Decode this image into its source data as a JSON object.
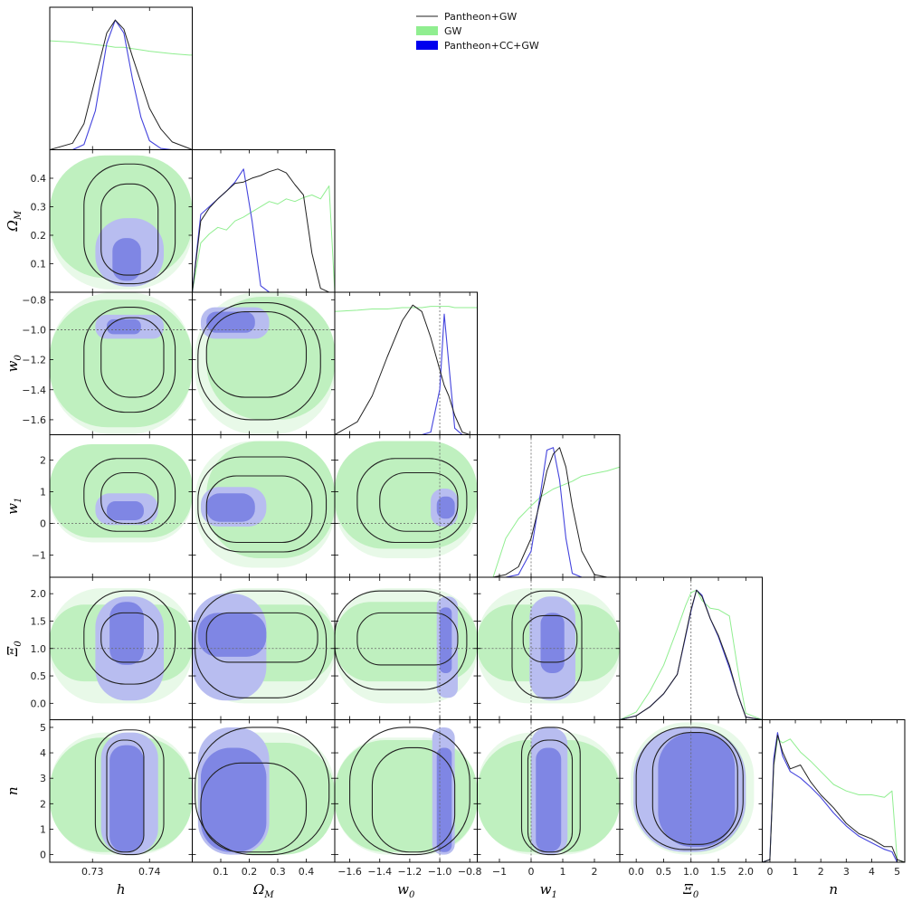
{
  "chart_data": {
    "type": "corner",
    "parameters": [
      {
        "key": "h",
        "label": "h",
        "sub": "",
        "range": [
          0.7225,
          0.7475
        ],
        "ticks": [
          0.73,
          0.74
        ],
        "tick_labels": [
          "0.73",
          "0.74"
        ]
      },
      {
        "key": "om",
        "label": "Ω",
        "sub": "M",
        "range": [
          0,
          0.5
        ],
        "ticks": [
          0.1,
          0.2,
          0.3,
          0.4
        ],
        "tick_labels": [
          "0.1",
          "0.2",
          "0.3",
          "0.4"
        ]
      },
      {
        "key": "w0",
        "label": "w",
        "sub": "0",
        "range": [
          -1.7,
          -0.75
        ],
        "ticks": [
          -1.6,
          -1.4,
          -1.2,
          -1.0,
          -0.8
        ],
        "tick_labels": [
          "−1.6",
          "−1.4",
          "−1.2",
          "−1.0",
          "−0.8"
        ]
      },
      {
        "key": "w1",
        "label": "w",
        "sub": "1",
        "range": [
          -1.7,
          2.8
        ],
        "ticks": [
          -1,
          0,
          1,
          2
        ],
        "tick_labels": [
          "−1",
          "0",
          "1",
          "2"
        ]
      },
      {
        "key": "xi",
        "label": "Ξ",
        "sub": "0",
        "range": [
          -0.3,
          2.3
        ],
        "ticks": [
          0.0,
          0.5,
          1.0,
          1.5,
          2.0
        ],
        "tick_labels": [
          "0.0",
          "0.5",
          "1.0",
          "1.5",
          "2.0"
        ]
      },
      {
        "key": "n",
        "label": "n",
        "sub": "",
        "range": [
          -0.3,
          5.3
        ],
        "ticks": [
          0,
          1,
          2,
          3,
          4,
          5
        ],
        "tick_labels": [
          "0",
          "1",
          "2",
          "3",
          "4",
          "5"
        ]
      }
    ],
    "reference_values": {
      "w0": -1.0,
      "w1": 0.0,
      "xi": 1.0
    },
    "legend": {
      "placement": "top-center",
      "entries": [
        {
          "name": "Pantheon+GW",
          "style": "line",
          "color": "#222222"
        },
        {
          "name": "GW",
          "style": "fill",
          "color": "#90ee90"
        },
        {
          "name": "Pantheon+CC+GW",
          "style": "fill",
          "color": "#0000ee"
        }
      ]
    },
    "colors": {
      "pgw": "#222222",
      "gw": "#90ee90",
      "gw_light": "#e8f9e8",
      "gw_mid": "#bff0bf",
      "pcc": "#4444dd",
      "pcc_light": "#b8bdf0",
      "pcc_dark": "#7f86e4"
    },
    "marginals": {
      "h": {
        "x": [
          0.7225,
          0.7265,
          0.7285,
          0.7305,
          0.7325,
          0.734,
          0.7355,
          0.737,
          0.7385,
          0.74,
          0.742,
          0.744,
          0.747,
          0.7475
        ],
        "pgw": [
          0.0,
          0.05,
          0.2,
          0.55,
          0.9,
          1.0,
          0.93,
          0.72,
          0.52,
          0.32,
          0.16,
          0.06,
          0.01,
          0.0
        ],
        "pcc": [
          0.0,
          0.0,
          0.04,
          0.3,
          0.82,
          1.0,
          0.9,
          0.55,
          0.25,
          0.07,
          0.01,
          0.0,
          0.0,
          0.0
        ],
        "gw": [
          0.84,
          0.83,
          0.82,
          0.81,
          0.8,
          0.79,
          0.79,
          0.78,
          0.77,
          0.76,
          0.75,
          0.74,
          0.73,
          0.73
        ]
      },
      "om": {
        "x": [
          0.0,
          0.03,
          0.06,
          0.09,
          0.12,
          0.15,
          0.18,
          0.21,
          0.24,
          0.27,
          0.3,
          0.33,
          0.36,
          0.39,
          0.42,
          0.45,
          0.48,
          0.5
        ],
        "pgw": [
          0.0,
          0.55,
          0.65,
          0.72,
          0.78,
          0.84,
          0.85,
          0.88,
          0.9,
          0.93,
          0.95,
          0.92,
          0.83,
          0.75,
          0.3,
          0.03,
          0.0,
          0.0
        ],
        "pcc": [
          0.0,
          0.6,
          0.66,
          0.72,
          0.78,
          0.85,
          0.95,
          0.55,
          0.05,
          0.0,
          0.0,
          0.0,
          0.0,
          0.0,
          0.0,
          0.0,
          0.0,
          0.0
        ],
        "gw": [
          0.0,
          0.38,
          0.45,
          0.5,
          0.48,
          0.55,
          0.58,
          0.62,
          0.66,
          0.7,
          0.68,
          0.72,
          0.7,
          0.73,
          0.75,
          0.72,
          0.82,
          0.0
        ]
      },
      "w0": {
        "x": [
          -1.7,
          -1.55,
          -1.45,
          -1.35,
          -1.25,
          -1.18,
          -1.12,
          -1.06,
          -1.0,
          -0.97,
          -0.94,
          -0.9,
          -0.85,
          -0.8,
          -0.75
        ],
        "pgw": [
          0.0,
          0.1,
          0.3,
          0.6,
          0.88,
          1.0,
          0.95,
          0.75,
          0.5,
          0.38,
          0.3,
          0.15,
          0.02,
          0.0,
          0.0
        ],
        "pcc": [
          0.0,
          0.0,
          0.0,
          0.0,
          0.0,
          0.0,
          0.0,
          0.02,
          0.35,
          0.93,
          0.55,
          0.05,
          0.0,
          0.0,
          0.0
        ],
        "gw": [
          0.95,
          0.96,
          0.97,
          0.97,
          0.98,
          0.98,
          0.98,
          0.99,
          0.99,
          0.99,
          0.99,
          0.98,
          0.98,
          0.98,
          0.98
        ]
      },
      "w1": {
        "x": [
          -1.7,
          -1.2,
          -0.8,
          -0.4,
          0.0,
          0.3,
          0.5,
          0.7,
          0.9,
          1.1,
          1.3,
          1.6,
          2.0,
          2.4,
          2.8
        ],
        "pgw": [
          0.0,
          0.0,
          0.02,
          0.08,
          0.3,
          0.6,
          0.82,
          0.95,
          1.0,
          0.85,
          0.55,
          0.2,
          0.02,
          0.0,
          0.0
        ],
        "pcc": [
          0.0,
          0.0,
          0.0,
          0.02,
          0.2,
          0.65,
          0.98,
          1.0,
          0.75,
          0.3,
          0.03,
          0.0,
          0.0,
          0.0,
          0.0
        ],
        "gw": [
          0.0,
          0.0,
          0.3,
          0.45,
          0.55,
          0.62,
          0.65,
          0.68,
          0.7,
          0.72,
          0.74,
          0.78,
          0.8,
          0.82,
          0.85
        ]
      },
      "xi": {
        "x": [
          -0.3,
          0.0,
          0.25,
          0.5,
          0.75,
          0.9,
          1.0,
          1.1,
          1.2,
          1.35,
          1.5,
          1.7,
          1.85,
          2.0,
          2.3
        ],
        "pgw": [
          0.0,
          0.03,
          0.1,
          0.2,
          0.35,
          0.65,
          0.85,
          1.0,
          0.95,
          0.78,
          0.65,
          0.42,
          0.2,
          0.02,
          0.0
        ],
        "pcc": [
          0.0,
          0.03,
          0.1,
          0.2,
          0.35,
          0.64,
          0.84,
          1.0,
          0.96,
          0.78,
          0.64,
          0.4,
          0.2,
          0.02,
          0.0
        ],
        "gw": [
          0.0,
          0.06,
          0.22,
          0.42,
          0.7,
          0.88,
          0.98,
          1.0,
          0.92,
          0.86,
          0.85,
          0.8,
          0.4,
          0.05,
          0.0
        ]
      },
      "n": {
        "x": [
          -0.3,
          0.0,
          0.15,
          0.3,
          0.5,
          0.8,
          1.2,
          1.6,
          2.0,
          2.5,
          3.0,
          3.5,
          4.0,
          4.5,
          4.8,
          5.0,
          5.3
        ],
        "pgw": [
          0.0,
          0.02,
          0.75,
          0.98,
          0.85,
          0.72,
          0.75,
          0.62,
          0.52,
          0.42,
          0.3,
          0.22,
          0.18,
          0.12,
          0.12,
          0.02,
          0.0
        ],
        "pcc": [
          0.0,
          0.02,
          0.8,
          1.0,
          0.82,
          0.7,
          0.65,
          0.58,
          0.5,
          0.38,
          0.28,
          0.2,
          0.15,
          0.1,
          0.08,
          0.0,
          0.0
        ],
        "gw": [
          0.0,
          0.02,
          0.75,
          0.95,
          0.92,
          0.95,
          0.85,
          0.78,
          0.7,
          0.6,
          0.55,
          0.52,
          0.52,
          0.5,
          0.55,
          0.02,
          0.0
        ]
      }
    },
    "pairs": {
      "om|h": {
        "pgw": [
          [
            0.7285,
            0.03,
            0.7445,
            0.45
          ],
          [
            0.7315,
            0.06,
            0.7415,
            0.38
          ]
        ],
        "pcc": [
          [
            0.7305,
            0.02,
            0.7425,
            0.26
          ],
          [
            0.7335,
            0.04,
            0.7385,
            0.19
          ]
        ],
        "gw": [
          [
            0.7225,
            0.01,
            0.7475,
            0.48
          ],
          [
            0.7225,
            0.05,
            0.7475,
            0.48
          ]
        ]
      },
      "w0|h": {
        "pgw": [
          [
            0.7285,
            -1.55,
            0.7445,
            -0.85
          ],
          [
            0.7315,
            -1.45,
            0.7425,
            -0.92
          ]
        ],
        "pcc": [
          [
            0.7305,
            -1.06,
            0.7425,
            -0.9
          ],
          [
            0.7325,
            -1.03,
            0.7385,
            -0.93
          ]
        ],
        "gw": [
          [
            0.7225,
            -1.7,
            0.7475,
            -0.75
          ],
          [
            0.7225,
            -1.65,
            0.7475,
            -0.8
          ]
        ]
      },
      "w1|h": {
        "pgw": [
          [
            0.7285,
            -0.25,
            0.7445,
            2.05
          ],
          [
            0.7315,
            0.0,
            0.7415,
            1.6
          ]
        ],
        "pcc": [
          [
            0.7305,
            -0.05,
            0.7415,
            0.95
          ],
          [
            0.7325,
            0.1,
            0.739,
            0.7
          ]
        ],
        "gw": [
          [
            0.7225,
            -0.6,
            0.7475,
            2.5
          ],
          [
            0.7225,
            -0.45,
            0.7475,
            2.5
          ]
        ]
      },
      "xi|h": {
        "pgw": [
          [
            0.7285,
            0.35,
            0.7445,
            2.05
          ],
          [
            0.7315,
            0.75,
            0.7415,
            1.65
          ]
        ],
        "pcc": [
          [
            0.7305,
            0.05,
            0.7425,
            1.95
          ],
          [
            0.733,
            0.7,
            0.739,
            1.85
          ]
        ],
        "gw": [
          [
            0.7225,
            0.0,
            0.7475,
            2.1
          ],
          [
            0.7225,
            0.4,
            0.7475,
            1.8
          ]
        ]
      },
      "n|h": {
        "pgw": [
          [
            0.7305,
            0.0,
            0.7425,
            4.9
          ],
          [
            0.7325,
            0.1,
            0.739,
            4.5
          ]
        ],
        "pcc": [
          [
            0.7315,
            0.0,
            0.7415,
            4.8
          ],
          [
            0.733,
            0.1,
            0.739,
            4.3
          ]
        ],
        "gw": [
          [
            0.7225,
            0.0,
            0.7475,
            4.8
          ],
          [
            0.7225,
            0.1,
            0.7475,
            4.6
          ]
        ]
      },
      "w0|om": {
        "pgw": [
          [
            0.02,
            -1.6,
            0.45,
            -0.82
          ],
          [
            0.05,
            -1.45,
            0.4,
            -0.88
          ]
        ],
        "pcc": [
          [
            0.03,
            -1.06,
            0.27,
            -0.85
          ],
          [
            0.05,
            -1.02,
            0.22,
            -0.88
          ]
        ],
        "gw": [
          [
            0.01,
            -1.7,
            0.5,
            -0.75
          ],
          [
            0.05,
            -1.6,
            0.5,
            -0.78
          ]
        ]
      },
      "w1|om": {
        "pgw": [
          [
            0.02,
            -0.9,
            0.47,
            2.1
          ],
          [
            0.05,
            -0.6,
            0.42,
            1.5
          ]
        ],
        "pcc": [
          [
            0.03,
            -0.1,
            0.26,
            1.15
          ],
          [
            0.05,
            0.05,
            0.22,
            0.95
          ]
        ],
        "gw": [
          [
            0.01,
            -1.4,
            0.5,
            2.6
          ],
          [
            0.05,
            -1.1,
            0.5,
            2.6
          ]
        ]
      },
      "xi|om": {
        "pgw": [
          [
            0.01,
            0.1,
            0.47,
            2.05
          ],
          [
            0.05,
            0.75,
            0.44,
            1.65
          ]
        ],
        "pcc": [
          [
            0.0,
            0.05,
            0.26,
            2.0
          ],
          [
            0.02,
            0.85,
            0.26,
            1.65
          ]
        ],
        "gw": [
          [
            0.0,
            0.0,
            0.5,
            2.1
          ],
          [
            0.05,
            0.4,
            0.5,
            1.8
          ]
        ]
      },
      "n|om": {
        "pgw": [
          [
            0.01,
            0.0,
            0.48,
            5.0
          ],
          [
            0.03,
            0.1,
            0.4,
            3.6
          ]
        ],
        "pcc": [
          [
            0.02,
            0.0,
            0.27,
            5.0
          ],
          [
            0.03,
            0.1,
            0.26,
            4.2
          ]
        ],
        "gw": [
          [
            0.01,
            0.0,
            0.5,
            4.8
          ],
          [
            0.05,
            0.0,
            0.5,
            4.4
          ]
        ]
      },
      "w1|w0": {
        "pgw": [
          [
            -1.55,
            -0.6,
            -0.82,
            2.05
          ],
          [
            -1.4,
            -0.25,
            -0.88,
            1.6
          ]
        ],
        "pcc": [
          [
            -1.06,
            -0.1,
            -0.88,
            1.1
          ],
          [
            -1.02,
            0.15,
            -0.9,
            0.85
          ]
        ],
        "gw": [
          [
            -1.7,
            -1.1,
            -0.75,
            2.6
          ],
          [
            -1.7,
            -0.8,
            -0.75,
            2.6
          ]
        ]
      },
      "xi|w0": {
        "pgw": [
          [
            -1.7,
            0.25,
            -0.82,
            2.05
          ],
          [
            -1.55,
            0.7,
            -0.88,
            1.65
          ]
        ],
        "pcc": [
          [
            -1.02,
            0.1,
            -0.88,
            1.95
          ],
          [
            -1.0,
            0.55,
            -0.92,
            1.75
          ]
        ],
        "gw": [
          [
            -1.7,
            0.0,
            -0.75,
            2.1
          ],
          [
            -1.7,
            0.4,
            -0.75,
            1.85
          ]
        ]
      },
      "n|w0": {
        "pgw": [
          [
            -1.6,
            0.0,
            -0.8,
            5.0
          ],
          [
            -1.45,
            0.1,
            -0.9,
            4.2
          ]
        ],
        "pcc": [
          [
            -1.05,
            0.0,
            -0.9,
            5.0
          ],
          [
            -1.02,
            0.1,
            -0.92,
            4.2
          ]
        ],
        "gw": [
          [
            -1.7,
            0.0,
            -0.75,
            4.6
          ],
          [
            -1.7,
            0.1,
            -0.75,
            4.5
          ]
        ]
      },
      "xi|w1": {
        "pgw": [
          [
            -0.6,
            0.1,
            1.6,
            2.05
          ],
          [
            -0.25,
            0.75,
            1.45,
            1.6
          ]
        ],
        "pcc": [
          [
            -0.05,
            0.05,
            1.4,
            1.95
          ],
          [
            0.3,
            0.55,
            1.05,
            1.65
          ]
        ],
        "gw": [
          [
            -1.7,
            0.0,
            2.8,
            2.1
          ],
          [
            -1.7,
            0.4,
            2.8,
            1.8
          ]
        ]
      },
      "n|w1": {
        "pgw": [
          [
            -0.3,
            0.0,
            1.55,
            5.0
          ],
          [
            -0.1,
            0.1,
            1.3,
            4.5
          ]
        ],
        "pcc": [
          [
            0.0,
            0.0,
            1.15,
            5.0
          ],
          [
            0.15,
            0.1,
            0.95,
            4.2
          ]
        ],
        "gw": [
          [
            -1.7,
            0.0,
            2.8,
            4.8
          ],
          [
            -1.7,
            0.1,
            2.8,
            4.5
          ]
        ]
      },
      "n|xi": {
        "pgw": [
          [
            0.0,
            0.2,
            1.95,
            5.0
          ],
          [
            0.3,
            0.4,
            1.85,
            4.8
          ]
        ],
        "pcc": [
          [
            -0.05,
            0.1,
            2.0,
            5.0
          ],
          [
            0.4,
            0.3,
            1.8,
            4.8
          ]
        ],
        "gw": [
          [
            -0.1,
            0.0,
            2.15,
            5.2
          ],
          [
            0.0,
            0.1,
            2.0,
            5.0
          ]
        ]
      }
    }
  }
}
